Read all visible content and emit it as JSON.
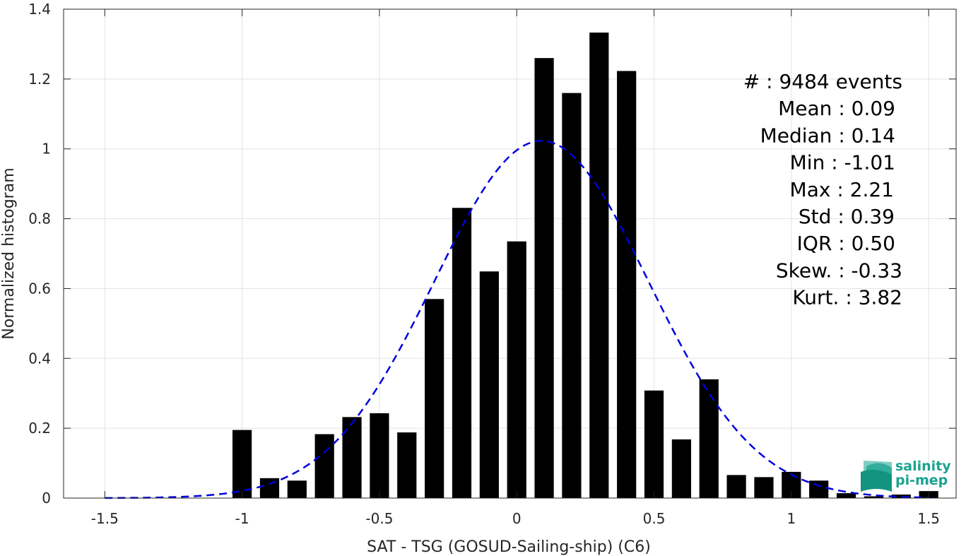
{
  "chart_data": {
    "type": "bar",
    "title": "",
    "xlabel": "SAT - TSG (GOSUD-Sailing-ship) (C6)",
    "ylabel": "Normalized histogram",
    "xlim": [
      -1.65,
      1.6
    ],
    "ylim": [
      0,
      1.4
    ],
    "grid": true,
    "xticks": [
      -1.5,
      -1,
      -0.5,
      0,
      0.5,
      1,
      1.5
    ],
    "xtick_labels": [
      "-1.5",
      "-1",
      "-0.5",
      "0",
      "0.5",
      "1",
      "1.5"
    ],
    "yticks": [
      0,
      0.2,
      0.4,
      0.6,
      0.8,
      1,
      1.2,
      1.4
    ],
    "ytick_labels": [
      "0",
      "0.2",
      "0.4",
      "0.6",
      "0.8",
      "1",
      "1.2",
      "1.4"
    ],
    "bar_width": 0.07,
    "bars": {
      "x": [
        -1.0,
        -0.9,
        -0.8,
        -0.7,
        -0.6,
        -0.5,
        -0.4,
        -0.3,
        -0.2,
        -0.1,
        0.0,
        0.1,
        0.2,
        0.3,
        0.4,
        0.5,
        0.6,
        0.7,
        0.8,
        0.9,
        1.0,
        1.1,
        1.2,
        1.3,
        1.4,
        1.5
      ],
      "values": [
        0.195,
        0.057,
        0.05,
        0.183,
        0.232,
        0.243,
        0.188,
        0.57,
        0.831,
        0.649,
        0.735,
        1.26,
        1.16,
        1.333,
        1.223,
        0.308,
        0.168,
        0.34,
        0.066,
        0.06,
        0.075,
        0.05,
        0.014,
        0.005,
        0.01,
        0.02
      ],
      "color": "#000000"
    },
    "fit_curve": {
      "style": "dashed",
      "color": "#0000dd",
      "mean": 0.09,
      "std": 0.39,
      "x_range": [
        -1.5,
        1.5
      ]
    },
    "stats": {
      "lines": [
        "#  : 9484 events",
        "Mean : 0.09",
        "Median : 0.14",
        "Min : -1.01",
        "Max : 2.21",
        "Std : 0.39",
        "IQR : 0.50",
        "Skew. : -0.33",
        "Kurt. : 3.82"
      ]
    }
  },
  "logo": {
    "line1": "salinity",
    "line2": "pi-mep",
    "color": "#1aa38f"
  }
}
